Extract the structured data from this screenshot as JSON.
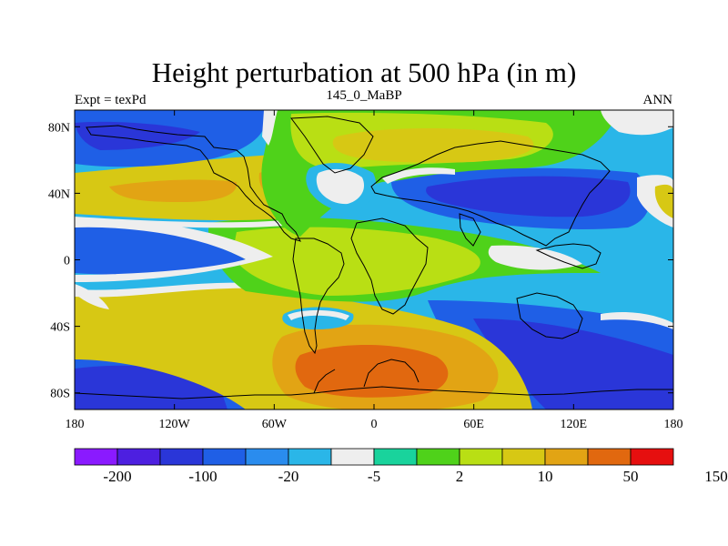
{
  "header": {
    "title": "Height perturbation at 500 hPa (in m)",
    "left_string": "Expt = texPd",
    "center_string": "145_0_MaBP",
    "right_string": "ANN"
  },
  "map": {
    "projection": "cylindrical-equidistant",
    "lon_range": [
      -180,
      180
    ],
    "lat_range": [
      -90,
      90
    ],
    "x_tick_labels": [
      "180",
      "120W",
      "60W",
      "0",
      "60E",
      "120E",
      "180"
    ],
    "x_tick_values": [
      -180,
      -120,
      -60,
      0,
      60,
      120,
      180
    ],
    "y_tick_labels": [
      "80N",
      "40N",
      "0",
      "40S",
      "80S"
    ],
    "y_tick_values": [
      80,
      40,
      0,
      -40,
      -80
    ],
    "colors": {
      "dark_purple": "#8a1aff",
      "indigo": "#4d1fe0",
      "dark_blue": "#2a36d8",
      "blue": "#1f5fe6",
      "mid_blue": "#2a8cee",
      "light_blue": "#2ab6e8",
      "white": "#eeeeee",
      "teal": "#19d39c",
      "green": "#4fd21a",
      "yellow_green": "#b9df14",
      "olive": "#d7c814",
      "gold": "#e2a414",
      "orange": "#e1680f",
      "red": "#e60f0f"
    }
  },
  "colorbar": {
    "colors": [
      "#8a1aff",
      "#4d1fe0",
      "#2a36d8",
      "#1f5fe6",
      "#2a8cee",
      "#2ab6e8",
      "#eeeeee",
      "#19d39c",
      "#4fd21a",
      "#b9df14",
      "#d7c814",
      "#e2a414",
      "#e1680f",
      "#e60f0f"
    ],
    "labels": [
      "-200",
      "-100",
      "-20",
      "-5",
      "2",
      "10",
      "50",
      "150"
    ]
  }
}
